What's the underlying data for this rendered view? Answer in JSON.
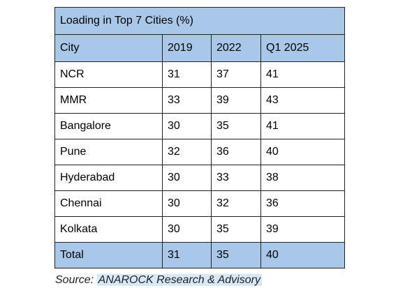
{
  "chart_data": {
    "type": "table",
    "title": "Loading in Top 7 Cities (%)",
    "columns": [
      "City",
      "2019",
      "2022",
      "Q1 2025"
    ],
    "rows": [
      [
        "NCR",
        "31",
        "37",
        "41"
      ],
      [
        "MMR",
        "33",
        "39",
        "43"
      ],
      [
        "Bangalore",
        "30",
        "35",
        "41"
      ],
      [
        "Pune",
        "32",
        "36",
        "40"
      ],
      [
        "Hyderabad",
        "30",
        "33",
        "38"
      ],
      [
        "Chennai",
        "30",
        "32",
        "36"
      ],
      [
        "Kolkata",
        "30",
        "35",
        "39"
      ]
    ],
    "total": [
      "Total",
      "31",
      "35",
      "40"
    ]
  },
  "source": {
    "prefix": "Source:",
    "org": "ANAROCK Research & Advisory"
  },
  "colors": {
    "header_fill": "#a9c7e8",
    "source_highlight": "#d7e8f7"
  }
}
